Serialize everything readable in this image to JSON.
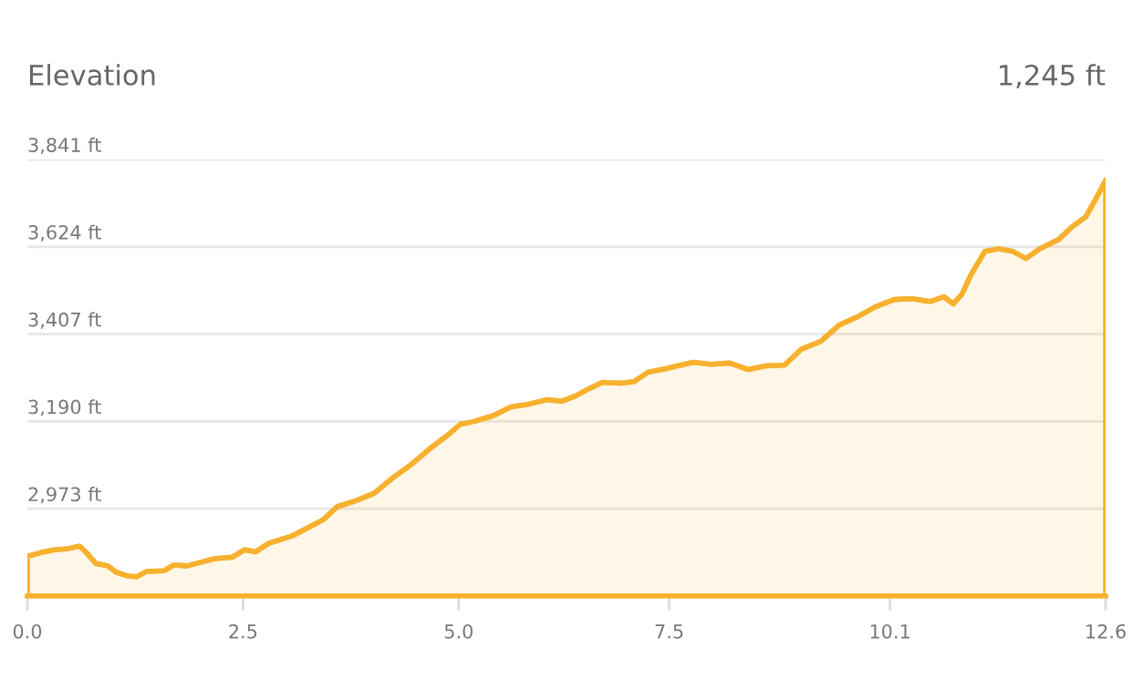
{
  "chart_data": {
    "type": "area",
    "title": "Elevation",
    "annotations": [
      "1,245 ft"
    ],
    "x": [
      0,
      0.16,
      0.32,
      0.48,
      0.61,
      0.69,
      0.8,
      0.94,
      1.04,
      1.17,
      1.28,
      1.39,
      1.6,
      1.71,
      1.87,
      2.03,
      2.19,
      2.4,
      2.54,
      2.67,
      2.82,
      3.09,
      3.3,
      3.46,
      3.62,
      3.84,
      4.05,
      4.26,
      4.48,
      4.69,
      4.9,
      5.06,
      5.22,
      5.44,
      5.65,
      5.86,
      6.08,
      6.24,
      6.4,
      6.56,
      6.72,
      6.93,
      7.09,
      7.25,
      7.46,
      7.78,
      7.99,
      8.21,
      8.42,
      8.63,
      8.85,
      9.04,
      9.27,
      9.49,
      9.7,
      9.91,
      10.13,
      10.34,
      10.55,
      10.71,
      10.82,
      10.92,
      11.03,
      11.19,
      11.35,
      11.51,
      11.67,
      11.83,
      12.05,
      12.21,
      12.37,
      12.47,
      12.6
    ],
    "series": [
      {
        "color": "#f7b12f",
        "values": [
          2855,
          2864,
          2871,
          2874,
          2880,
          2864,
          2837,
          2831,
          2815,
          2806,
          2804,
          2817,
          2819,
          2833,
          2831,
          2840,
          2849,
          2853,
          2871,
          2866,
          2887,
          2905,
          2928,
          2946,
          2978,
          2993,
          3011,
          3048,
          3082,
          3120,
          3154,
          3183,
          3190,
          3204,
          3226,
          3233,
          3244,
          3240,
          3253,
          3271,
          3287,
          3285,
          3289,
          3312,
          3321,
          3337,
          3332,
          3335,
          3319,
          3328,
          3330,
          3369,
          3389,
          3430,
          3450,
          3475,
          3493,
          3495,
          3488,
          3500,
          3482,
          3506,
          3556,
          3613,
          3619,
          3613,
          3595,
          3619,
          3642,
          3674,
          3699,
          3737,
          3789
        ]
      }
    ],
    "xlim": [
      0,
      12.6
    ],
    "xticks": [
      {
        "value": 0,
        "label": "0.0"
      },
      {
        "value": 2.52,
        "label": "2.5"
      },
      {
        "value": 5.04,
        "label": "5.0"
      },
      {
        "value": 7.5,
        "label": "7.5"
      },
      {
        "value": 10.08,
        "label": "10.1"
      },
      {
        "value": 12.6,
        "label": "12.6"
      }
    ],
    "ylim": [
      2756,
      3841
    ],
    "yticks": [
      {
        "value": 2973,
        "label": "2,973 ft"
      },
      {
        "value": 3190,
        "label": "3,190 ft"
      },
      {
        "value": 3407,
        "label": "3,407 ft"
      },
      {
        "value": 3624,
        "label": "3,624 ft"
      },
      {
        "value": 3841,
        "label": "3,841 ft"
      }
    ],
    "grid": "y",
    "legend": false
  }
}
